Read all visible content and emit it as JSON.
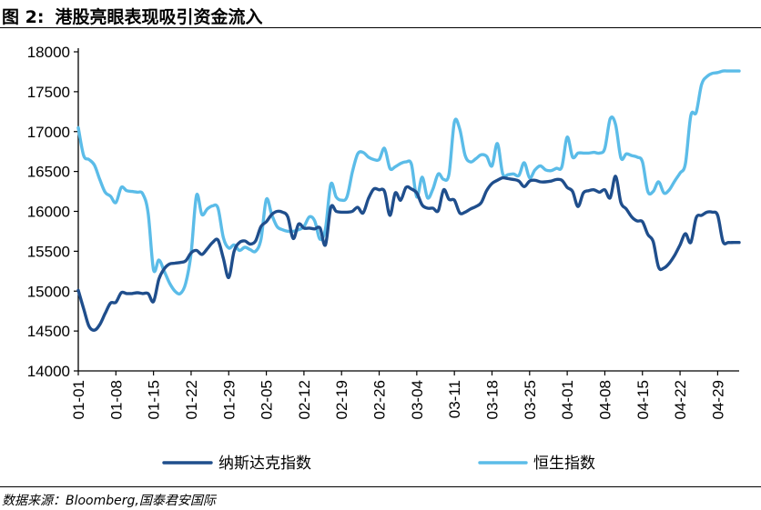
{
  "header": {
    "figure_label": "图 2:",
    "title": "港股亮眼表现吸引资金流入"
  },
  "footer": {
    "source": "数据来源：Bloomberg,国泰君安国际"
  },
  "colors": {
    "nasdaq": "#1f4e8c",
    "hsi": "#5bbce8",
    "axis": "#000000",
    "rule": "#000000"
  },
  "chart_data": {
    "type": "line",
    "title": "",
    "xlabel": "",
    "ylabel": "",
    "x_range": [
      0,
      123
    ],
    "ylim": [
      14000,
      18000
    ],
    "y_ticks": [
      14000,
      14500,
      15000,
      15500,
      16000,
      16500,
      17000,
      17500,
      18000
    ],
    "x_ticks": [
      {
        "x": 0,
        "label": "01-01"
      },
      {
        "x": 7,
        "label": "01-08"
      },
      {
        "x": 14,
        "label": "01-15"
      },
      {
        "x": 21,
        "label": "01-22"
      },
      {
        "x": 28,
        "label": "01-29"
      },
      {
        "x": 35,
        "label": "02-05"
      },
      {
        "x": 42,
        "label": "02-12"
      },
      {
        "x": 49,
        "label": "02-19"
      },
      {
        "x": 56,
        "label": "02-26"
      },
      {
        "x": 63,
        "label": "03-04"
      },
      {
        "x": 70,
        "label": "03-11"
      },
      {
        "x": 77,
        "label": "03-18"
      },
      {
        "x": 84,
        "label": "03-25"
      },
      {
        "x": 91,
        "label": "04-01"
      },
      {
        "x": 98,
        "label": "04-08"
      },
      {
        "x": 105,
        "label": "04-15"
      },
      {
        "x": 112,
        "label": "04-22"
      },
      {
        "x": 119,
        "label": "04-29"
      }
    ],
    "grid": false,
    "legend": "bottom",
    "series": [
      {
        "name": "纳斯达克指数",
        "x": [
          0,
          1,
          2,
          3,
          4,
          5,
          6,
          7,
          8,
          9,
          10,
          11,
          12,
          13,
          14,
          15,
          16,
          17,
          18,
          19,
          20,
          21,
          22,
          23,
          24,
          25,
          26,
          27,
          28,
          29,
          30,
          31,
          32,
          33,
          34,
          35,
          36,
          37,
          38,
          39,
          40,
          41,
          42,
          43,
          44,
          45,
          46,
          47,
          48,
          49,
          50,
          51,
          52,
          53,
          54,
          55,
          56,
          57,
          58,
          59,
          60,
          61,
          62,
          63,
          64,
          65,
          66,
          67,
          68,
          69,
          70,
          71,
          72,
          73,
          74,
          75,
          76,
          77,
          78,
          79,
          80,
          81,
          82,
          83,
          84,
          85,
          86,
          87,
          88,
          89,
          90,
          91,
          92,
          93,
          94,
          95,
          96,
          97,
          98,
          99,
          100,
          101,
          102,
          103,
          104,
          105,
          106,
          107,
          108,
          109,
          110,
          111,
          112,
          113,
          114,
          115,
          116,
          117,
          118,
          119,
          120,
          121,
          122,
          123
        ],
        "values": [
          15010,
          14780,
          14560,
          14510,
          14580,
          14720,
          14850,
          14860,
          14980,
          14970,
          14970,
          14980,
          14970,
          14970,
          14870,
          15150,
          15280,
          15340,
          15350,
          15360,
          15380,
          15480,
          15510,
          15460,
          15530,
          15610,
          15640,
          15410,
          15170,
          15500,
          15610,
          15630,
          15590,
          15630,
          15810,
          15870,
          15960,
          16000,
          15990,
          15930,
          15660,
          15840,
          15790,
          15790,
          15780,
          15790,
          15580,
          16050,
          16000,
          15990,
          15990,
          16000,
          16050,
          15980,
          16160,
          16280,
          16270,
          16250,
          15950,
          16230,
          16140,
          16300,
          16280,
          16230,
          16080,
          16040,
          16040,
          16010,
          16270,
          16150,
          16140,
          15980,
          15990,
          16030,
          16060,
          16110,
          16260,
          16350,
          16390,
          16420,
          16410,
          16400,
          16380,
          16310,
          16380,
          16390,
          16370,
          16370,
          16380,
          16400,
          16390,
          16300,
          16250,
          16060,
          16230,
          16260,
          16270,
          16240,
          16270,
          16170,
          16440,
          16110,
          16030,
          15930,
          15880,
          15870,
          15710,
          15620,
          15300,
          15290,
          15350,
          15450,
          15580,
          15720,
          15610,
          15920,
          15950,
          15990,
          15990,
          15950,
          15620,
          15610,
          15610,
          15610
        ]
      },
      {
        "name": "恒生指数",
        "x": [
          0,
          1,
          2,
          3,
          4,
          5,
          6,
          7,
          8,
          9,
          10,
          11,
          12,
          13,
          14,
          15,
          16,
          17,
          18,
          19,
          20,
          21,
          22,
          23,
          24,
          25,
          26,
          27,
          28,
          29,
          30,
          31,
          32,
          33,
          34,
          35,
          36,
          37,
          38,
          39,
          40,
          41,
          42,
          43,
          44,
          45,
          46,
          47,
          48,
          49,
          50,
          51,
          52,
          53,
          54,
          55,
          56,
          57,
          58,
          59,
          60,
          61,
          62,
          63,
          64,
          65,
          66,
          67,
          68,
          69,
          70,
          71,
          72,
          73,
          74,
          75,
          76,
          77,
          78,
          79,
          80,
          81,
          82,
          83,
          84,
          85,
          86,
          87,
          88,
          89,
          90,
          91,
          92,
          93,
          94,
          95,
          96,
          97,
          98,
          99,
          100,
          101,
          102,
          103,
          104,
          105,
          106,
          107,
          108,
          109,
          110,
          111,
          112,
          113,
          114,
          115,
          116,
          117,
          118,
          119,
          120,
          121,
          122,
          123
        ],
        "values": [
          17050,
          16700,
          16650,
          16580,
          16400,
          16240,
          16190,
          16110,
          16300,
          16260,
          16250,
          16240,
          16220,
          15980,
          15270,
          15390,
          15250,
          15100,
          15000,
          14970,
          15100,
          15480,
          16200,
          15960,
          16030,
          16070,
          16040,
          15670,
          15540,
          15580,
          15510,
          15550,
          15520,
          15500,
          15650,
          16150,
          15960,
          15810,
          15770,
          15750,
          15750,
          15770,
          15810,
          15930,
          15880,
          15650,
          15780,
          16340,
          16180,
          16140,
          16180,
          16490,
          16720,
          16740,
          16680,
          16650,
          16650,
          16790,
          16540,
          16560,
          16600,
          16620,
          16590,
          16180,
          16430,
          16170,
          16280,
          16470,
          16400,
          16470,
          17120,
          17030,
          16700,
          16620,
          16660,
          16710,
          16690,
          16570,
          16850,
          16470,
          16460,
          16470,
          16450,
          16610,
          16420,
          16520,
          16570,
          16520,
          16510,
          16540,
          16560,
          16930,
          16680,
          16730,
          16730,
          16730,
          16740,
          16730,
          16790,
          17160,
          17090,
          16670,
          16720,
          16700,
          16680,
          16620,
          16250,
          16250,
          16370,
          16230,
          16270,
          16380,
          16480,
          16600,
          17200,
          17240,
          17590,
          17690,
          17730,
          17740,
          17760,
          17760,
          17760,
          17760
        ]
      }
    ]
  }
}
